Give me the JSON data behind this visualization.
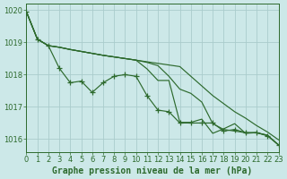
{
  "title": "Graphe pression niveau de la mer (hPa)",
  "bg": "#cce8e8",
  "grid_color": "#aacccc",
  "lc": "#2d6a2d",
  "xlim": [
    0,
    23
  ],
  "ylim": [
    1015.6,
    1020.2
  ],
  "yticks": [
    1016,
    1017,
    1018,
    1019,
    1020
  ],
  "xticks": [
    0,
    1,
    2,
    3,
    4,
    5,
    6,
    7,
    8,
    9,
    10,
    11,
    12,
    13,
    14,
    15,
    16,
    17,
    18,
    19,
    20,
    21,
    22,
    23
  ],
  "s0": [
    1019.95,
    1019.1,
    1018.9,
    1018.2,
    1017.75,
    1017.8,
    1017.45,
    1017.75,
    1017.95,
    1018.0,
    1017.95,
    1017.35,
    1016.9,
    1016.85,
    1016.5,
    1016.5,
    1016.5,
    1016.5,
    1016.25,
    1016.3,
    1016.2,
    1016.2,
    1016.1,
    1015.82
  ],
  "s1": [
    1019.95,
    1019.1,
    1018.9,
    1018.85,
    1018.78,
    1018.72,
    1018.66,
    1018.6,
    1018.55,
    1018.5,
    1018.45,
    1018.4,
    1018.35,
    1018.3,
    1018.25,
    1017.95,
    1017.65,
    1017.35,
    1017.1,
    1016.85,
    1016.65,
    1016.42,
    1016.22,
    1015.98
  ],
  "s2": [
    1019.95,
    1019.1,
    1018.9,
    1018.85,
    1018.78,
    1018.72,
    1018.66,
    1018.6,
    1018.55,
    1018.5,
    1018.45,
    1018.38,
    1018.28,
    1017.95,
    1017.55,
    1017.42,
    1017.15,
    1016.48,
    1016.3,
    1016.25,
    1016.2,
    1016.2,
    1016.12,
    1015.82
  ],
  "s3": [
    1019.95,
    1019.1,
    1018.9,
    1018.85,
    1018.78,
    1018.72,
    1018.66,
    1018.6,
    1018.55,
    1018.5,
    1018.45,
    1018.18,
    1017.82,
    1017.82,
    1016.52,
    1016.52,
    1016.62,
    1016.18,
    1016.32,
    1016.48,
    1016.18,
    1016.2,
    1016.12,
    1015.82
  ],
  "label_fontsize": 7.0,
  "tick_fontsize": 6.0
}
